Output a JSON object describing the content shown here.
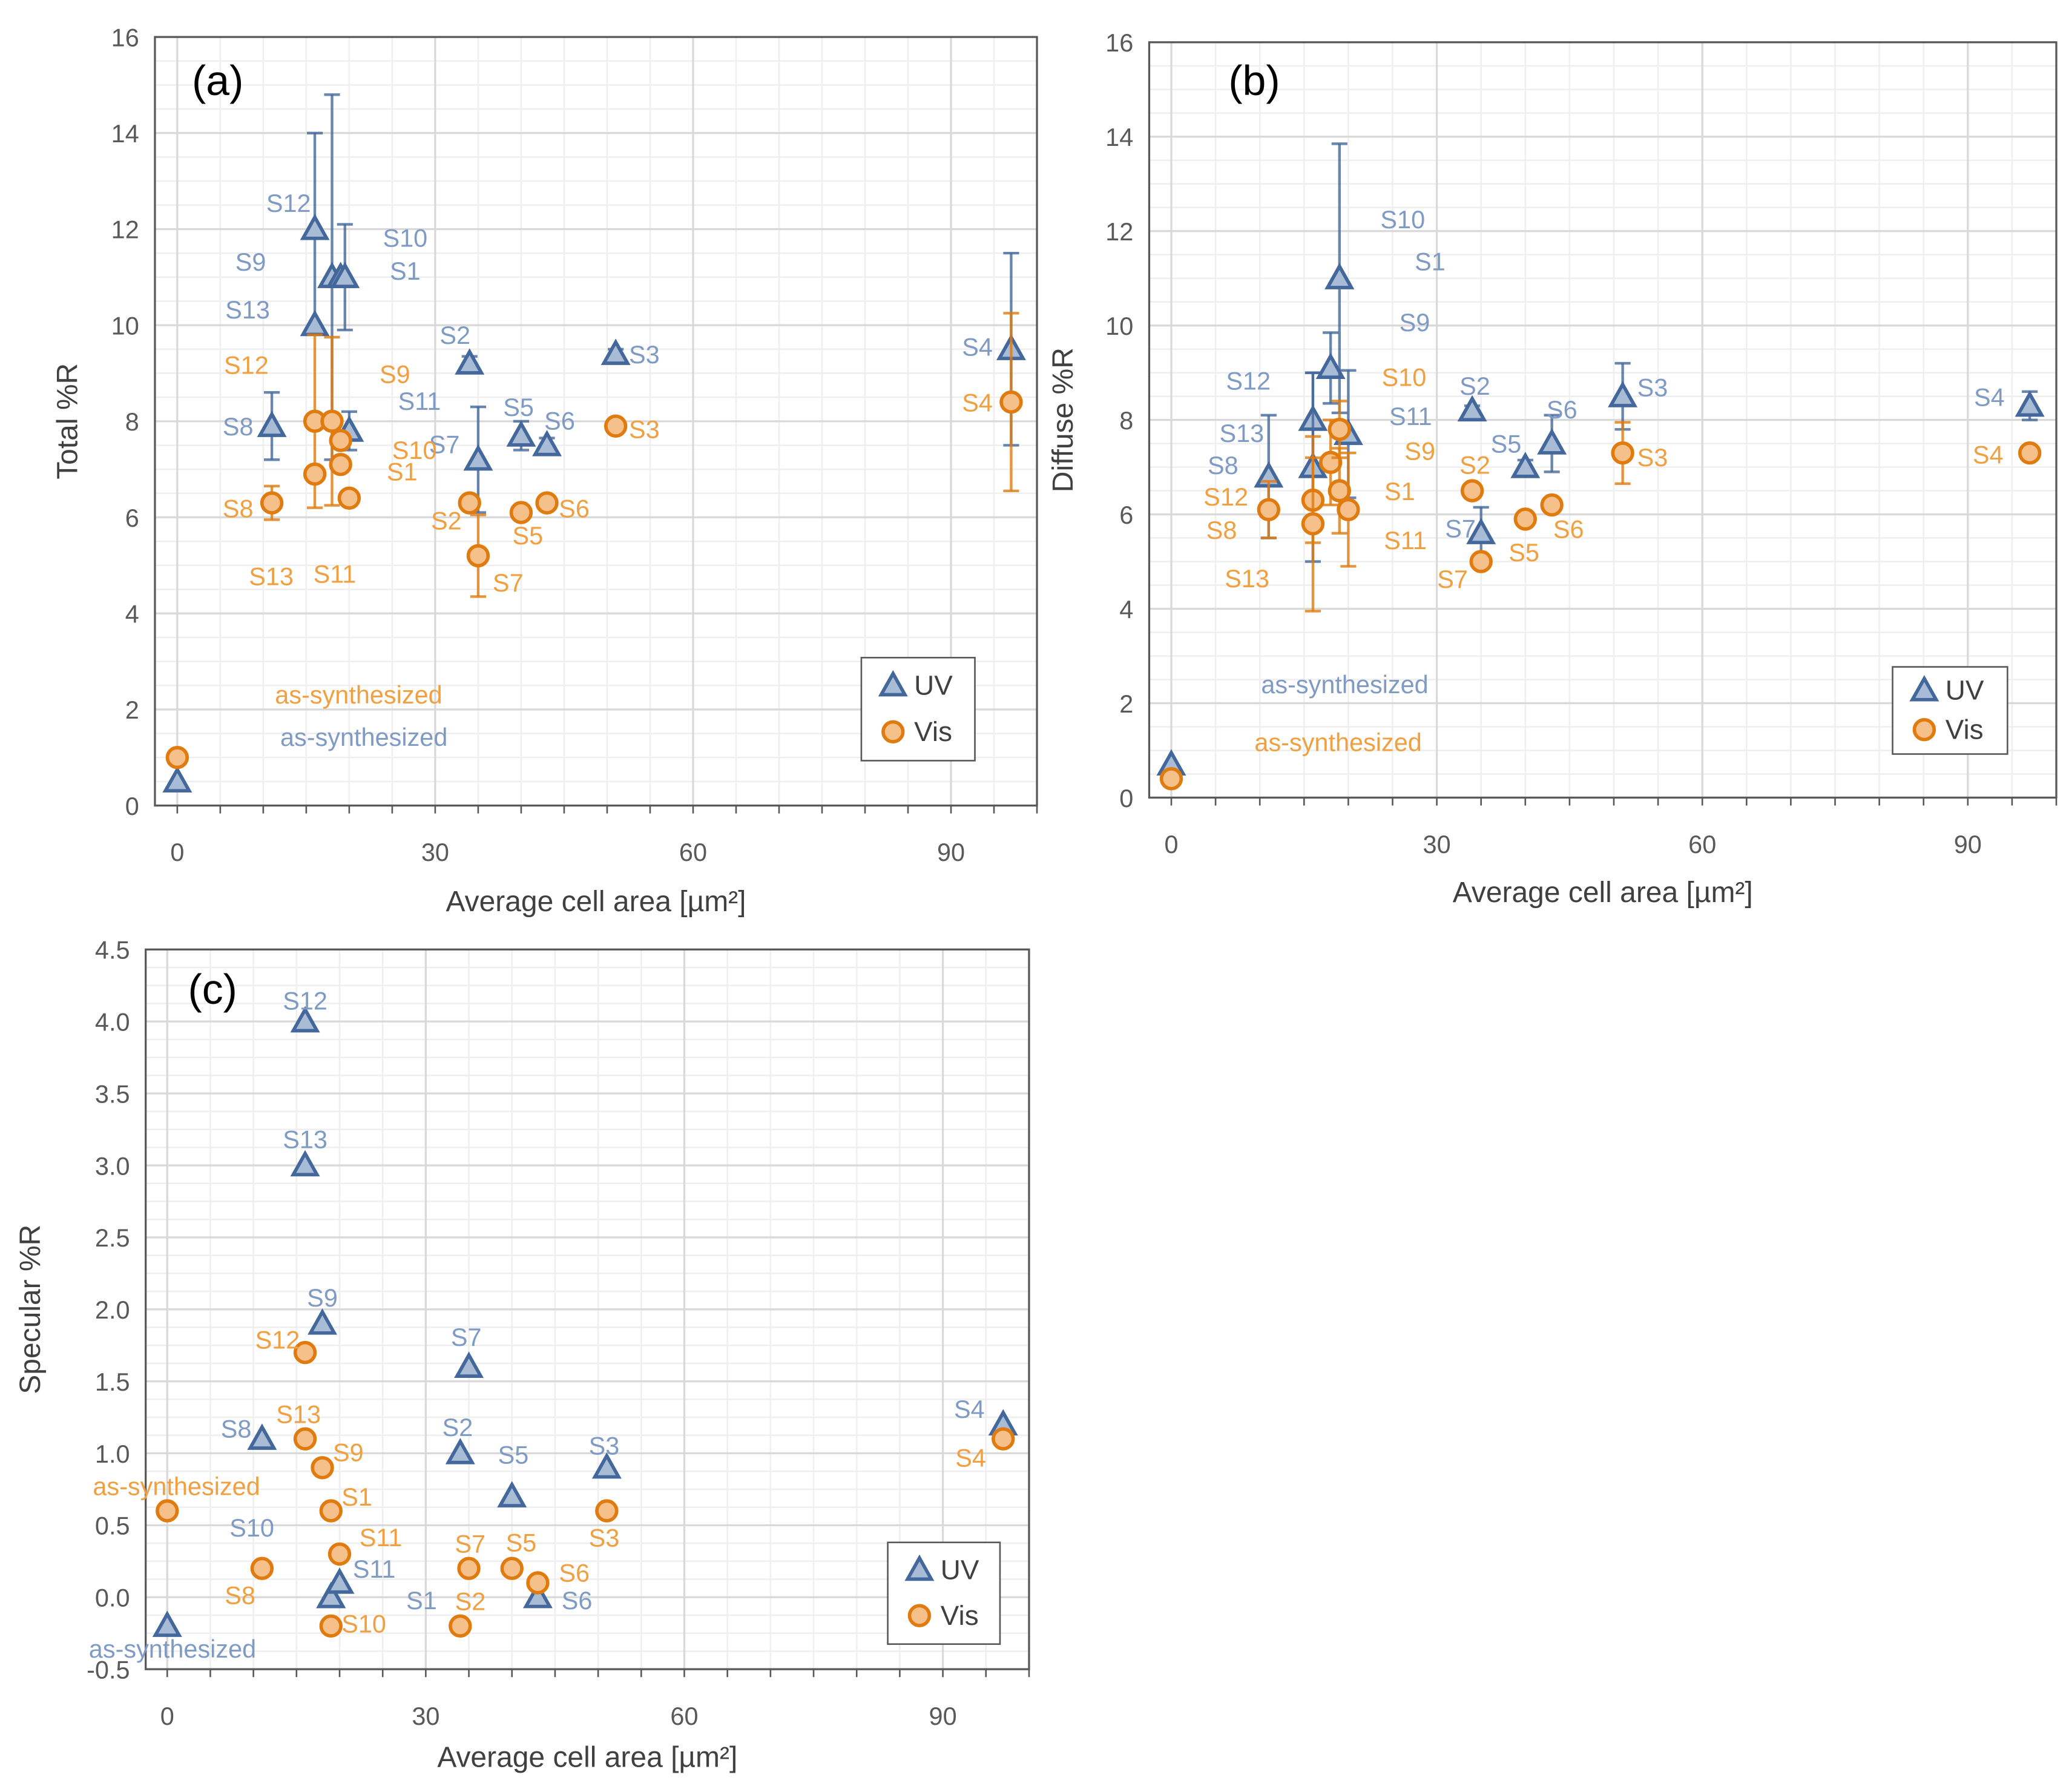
{
  "colors": {
    "uv_stroke": "#44689b",
    "uv_fill": "#a9bcd6",
    "uv_label": "#7f9bc4",
    "vis_stroke": "#e07b10",
    "vis_fill": "#f5c08a",
    "vis_label": "#f0a040"
  },
  "chart_data": [
    {
      "type": "scatter",
      "panel": "(a)",
      "ylabel": "Total %R",
      "xlabel": "Average cell area [µm²]",
      "xlim": [
        -2.6,
        100
      ],
      "ylim": [
        0,
        16
      ],
      "xticks": [
        0,
        30,
        60,
        90
      ],
      "yticks": [
        0,
        2,
        4,
        6,
        8,
        10,
        12,
        14,
        16
      ],
      "grid": true,
      "legend": [
        "UV",
        "Vis"
      ],
      "legend_position": "bottom-right",
      "series": [
        {
          "name": "UV",
          "points": [
            {
              "label": "as-synthesized",
              "x": 0,
              "y": 0.5,
              "err": 0
            },
            {
              "label": "S8",
              "x": 11,
              "y": 7.9,
              "err": 0.7
            },
            {
              "label": "S12",
              "x": 16,
              "y": 12.0,
              "err": 2.0
            },
            {
              "label": "S13",
              "x": 16,
              "y": 10.0,
              "err": 0
            },
            {
              "label": "S9",
              "x": 18,
              "y": 11.0,
              "err": 3.8
            },
            {
              "label": "S10",
              "x": 19,
              "y": 11.0,
              "err": 0
            },
            {
              "label": "S1",
              "x": 19.5,
              "y": 11.0,
              "err": 1.1
            },
            {
              "label": "S11",
              "x": 20,
              "y": 7.8,
              "err": 0.4
            },
            {
              "label": "S2",
              "x": 34,
              "y": 9.2,
              "err": 0.15
            },
            {
              "label": "S7",
              "x": 35,
              "y": 7.2,
              "err": 1.1
            },
            {
              "label": "S5",
              "x": 40,
              "y": 7.7,
              "err": 0.3
            },
            {
              "label": "S6",
              "x": 43,
              "y": 7.5,
              "err": 0.15
            },
            {
              "label": "S3",
              "x": 51,
              "y": 9.4,
              "err": 0.1
            },
            {
              "label": "S4",
              "x": 97,
              "y": 9.5,
              "err": 2.0
            }
          ]
        },
        {
          "name": "Vis",
          "points": [
            {
              "label": "as-synthesized",
              "x": 0,
              "y": 1.0,
              "err": 0
            },
            {
              "label": "S8",
              "x": 11,
              "y": 6.3,
              "err": 0.35
            },
            {
              "label": "S12",
              "x": 16,
              "y": 8.0,
              "err": 1.8
            },
            {
              "label": "S13",
              "x": 16,
              "y": 6.9,
              "err": 0
            },
            {
              "label": "S9",
              "x": 18,
              "y": 8.0,
              "err": 1.75
            },
            {
              "label": "S10",
              "x": 19,
              "y": 7.6,
              "err": 0
            },
            {
              "label": "S1",
              "x": 19,
              "y": 7.1,
              "err": 0
            },
            {
              "label": "S11",
              "x": 20,
              "y": 6.4,
              "err": 0
            },
            {
              "label": "S2",
              "x": 34,
              "y": 6.3,
              "err": 0.1
            },
            {
              "label": "S7",
              "x": 35,
              "y": 5.2,
              "err": 0.85
            },
            {
              "label": "S5",
              "x": 40,
              "y": 6.1,
              "err": 0.15
            },
            {
              "label": "S6",
              "x": 43,
              "y": 6.3,
              "err": 0.1
            },
            {
              "label": "S3",
              "x": 51,
              "y": 7.9,
              "err": 0.1
            },
            {
              "label": "S4",
              "x": 97,
              "y": 8.4,
              "err": 1.85
            }
          ]
        }
      ]
    },
    {
      "type": "scatter",
      "panel": "(b)",
      "ylabel": "Diffuse %R",
      "xlabel": "Average cell area [µm²]",
      "xlim": [
        -2.5,
        100
      ],
      "ylim": [
        0,
        16
      ],
      "xticks": [
        0,
        30,
        60,
        90
      ],
      "yticks": [
        0,
        2,
        4,
        6,
        8,
        10,
        12,
        14,
        16
      ],
      "grid": true,
      "legend": [
        "UV",
        "Vis"
      ],
      "legend_position": "bottom-right",
      "series": [
        {
          "name": "UV",
          "points": [
            {
              "label": "as-synthesized",
              "x": 0,
              "y": 0.7,
              "err": 0
            },
            {
              "label": "S8",
              "x": 11,
              "y": 6.8,
              "err": 1.3
            },
            {
              "label": "S12",
              "x": 16,
              "y": 8.0,
              "err": 1.0
            },
            {
              "label": "S13",
              "x": 16,
              "y": 7.0,
              "err": 2.0
            },
            {
              "label": "S9",
              "x": 18,
              "y": 9.1,
              "err": 0.75
            },
            {
              "label": "S10",
              "x": 19,
              "y": 11.0,
              "err": 2.85
            },
            {
              "label": "S1",
              "x": 19,
              "y": 11.0,
              "err": 0
            },
            {
              "label": "S11",
              "x": 20,
              "y": 7.7,
              "err": 1.35
            },
            {
              "label": "S2",
              "x": 34,
              "y": 8.2,
              "err": 0.1
            },
            {
              "label": "S7",
              "x": 35,
              "y": 5.6,
              "err": 0.55
            },
            {
              "label": "S5",
              "x": 40,
              "y": 7.0,
              "err": 0.15
            },
            {
              "label": "S6",
              "x": 43,
              "y": 7.5,
              "err": 0.6
            },
            {
              "label": "S3",
              "x": 51,
              "y": 8.5,
              "err": 0.7
            },
            {
              "label": "S4",
              "x": 97,
              "y": 8.3,
              "err": 0.3
            }
          ]
        },
        {
          "name": "Vis",
          "points": [
            {
              "label": "as-synthesized",
              "x": 0,
              "y": 0.4,
              "err": 0
            },
            {
              "label": "S8",
              "x": 11,
              "y": 6.1,
              "err": 0.6
            },
            {
              "label": "S12",
              "x": 16,
              "y": 6.3,
              "err": 0.9
            },
            {
              "label": "S13",
              "x": 16,
              "y": 5.8,
              "err": 1.85
            },
            {
              "label": "S9",
              "x": 18,
              "y": 7.1,
              "err": 0.9
            },
            {
              "label": "S10",
              "x": 19,
              "y": 7.8,
              "err": 0.6
            },
            {
              "label": "S1",
              "x": 19,
              "y": 6.5,
              "err": 0.9
            },
            {
              "label": "S11",
              "x": 20,
              "y": 6.1,
              "err": 1.2
            },
            {
              "label": "S2",
              "x": 34,
              "y": 6.5,
              "err": 0.1
            },
            {
              "label": "S7",
              "x": 35,
              "y": 5.0,
              "err": 0.1
            },
            {
              "label": "S5",
              "x": 40,
              "y": 5.9,
              "err": 0.1
            },
            {
              "label": "S6",
              "x": 43,
              "y": 6.2,
              "err": 0.1
            },
            {
              "label": "S3",
              "x": 51,
              "y": 7.3,
              "err": 0.65
            },
            {
              "label": "S4",
              "x": 97,
              "y": 7.3,
              "err": 0.05
            }
          ]
        }
      ]
    },
    {
      "type": "scatter",
      "panel": "(c)",
      "ylabel": "Specular %R",
      "xlabel": "Average cell area [µm²]",
      "xlim": [
        -2.5,
        100
      ],
      "ylim": [
        -0.5,
        4.5
      ],
      "xticks": [
        0,
        30,
        60,
        90
      ],
      "yticks": [
        -0.5,
        0.0,
        0.5,
        1.0,
        1.5,
        2.0,
        2.5,
        3.0,
        3.5,
        4.0,
        4.5
      ],
      "grid": true,
      "legend": [
        "UV",
        "Vis"
      ],
      "legend_position": "bottom-right",
      "series": [
        {
          "name": "UV",
          "points": [
            {
              "label": "as-synthesized",
              "x": 0,
              "y": -0.2
            },
            {
              "label": "S8",
              "x": 11,
              "y": 1.1
            },
            {
              "label": "S12",
              "x": 16,
              "y": 4.0
            },
            {
              "label": "S13",
              "x": 16,
              "y": 3.0
            },
            {
              "label": "S9",
              "x": 18,
              "y": 1.9
            },
            {
              "label": "S10",
              "x": 19,
              "y": 0.0
            },
            {
              "label": "S1",
              "x": 19,
              "y": 0.0
            },
            {
              "label": "S11",
              "x": 20,
              "y": 0.1
            },
            {
              "label": "S2",
              "x": 34,
              "y": 1.0
            },
            {
              "label": "S7",
              "x": 35,
              "y": 1.6
            },
            {
              "label": "S5",
              "x": 40,
              "y": 0.7
            },
            {
              "label": "S6",
              "x": 43,
              "y": 0.0
            },
            {
              "label": "S3",
              "x": 51,
              "y": 0.9
            },
            {
              "label": "S4",
              "x": 97,
              "y": 1.2
            }
          ]
        },
        {
          "name": "Vis",
          "points": [
            {
              "label": "as-synthesized",
              "x": 0,
              "y": 0.6
            },
            {
              "label": "S8",
              "x": 11,
              "y": 0.2
            },
            {
              "label": "S12",
              "x": 16,
              "y": 1.7
            },
            {
              "label": "S13",
              "x": 16,
              "y": 1.1
            },
            {
              "label": "S9",
              "x": 18,
              "y": 0.9
            },
            {
              "label": "S1",
              "x": 19,
              "y": 0.6
            },
            {
              "label": "S11",
              "x": 20,
              "y": 0.3
            },
            {
              "label": "S10",
              "x": 19,
              "y": -0.2
            },
            {
              "label": "S2",
              "x": 34,
              "y": -0.2
            },
            {
              "label": "S7",
              "x": 35,
              "y": 0.2
            },
            {
              "label": "S5",
              "x": 40,
              "y": 0.2
            },
            {
              "label": "S6",
              "x": 43,
              "y": 0.1
            },
            {
              "label": "S3",
              "x": 51,
              "y": 0.6
            },
            {
              "label": "S4",
              "x": 97,
              "y": 1.1
            }
          ]
        }
      ]
    }
  ]
}
